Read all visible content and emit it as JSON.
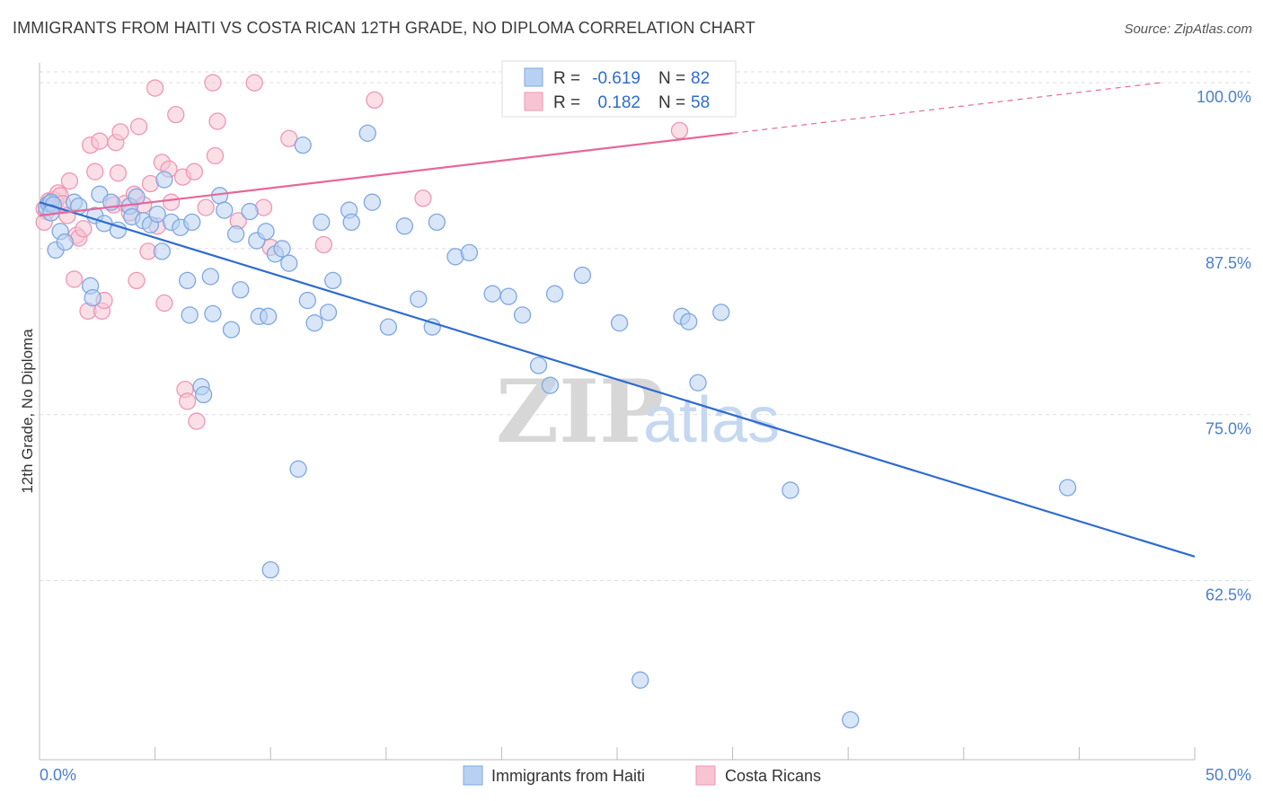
{
  "header": {
    "title": "IMMIGRANTS FROM HAITI VS COSTA RICAN 12TH GRADE, NO DIPLOMA CORRELATION CHART",
    "source": "Source: ZipAtlas.com"
  },
  "watermark": {
    "zip": "ZIP",
    "atlas": "atlas"
  },
  "colors": {
    "blue_fill": "#b8d1f3",
    "blue_stroke": "#7fa7e0",
    "blue_line": "#2f6ccc",
    "pink_fill": "#f8c4d4",
    "pink_stroke": "#ef96b4",
    "pink_line": "#e8679a",
    "grid": "#dddddd",
    "axis_text": "#4a7fd0"
  },
  "legend": {
    "r_label": "R =",
    "n_label": "N =",
    "series": [
      {
        "r": "-0.619",
        "n": "82"
      },
      {
        "r": "0.182",
        "n": "58"
      }
    ]
  },
  "bottom_legend": [
    "Immigrants from Haiti",
    "Costa Ricans"
  ],
  "chart_data": {
    "type": "scatter",
    "title": "IMMIGRANTS FROM HAITI VS COSTA RICAN 12TH GRADE, NO DIPLOMA CORRELATION CHART",
    "xlabel": "",
    "ylabel": "12th Grade, No Diploma",
    "xlim": [
      0,
      50
    ],
    "ylim": [
      49,
      101.5
    ],
    "x_tick_labels": [
      "0.0%",
      "50.0%"
    ],
    "y_ticks": [
      62.5,
      75.0,
      87.5,
      100.0
    ],
    "y_tick_labels": [
      "62.5%",
      "75.0%",
      "87.5%",
      "100.0%"
    ],
    "grid": true,
    "series": [
      {
        "name": "Immigrants from Haiti",
        "r": -0.619,
        "n": 82,
        "trend": {
          "x": [
            0,
            50
          ],
          "y": [
            91.0,
            64.3
          ],
          "dashed_from": null
        },
        "points": [
          [
            0.3,
            90.6
          ],
          [
            0.4,
            90.9
          ],
          [
            0.5,
            91.0
          ],
          [
            0.6,
            90.8
          ],
          [
            0.7,
            87.4
          ],
          [
            0.9,
            88.8
          ],
          [
            1.1,
            88.0
          ],
          [
            1.5,
            91.0
          ],
          [
            1.7,
            90.7
          ],
          [
            2.2,
            84.7
          ],
          [
            2.3,
            83.8
          ],
          [
            2.4,
            90.0
          ],
          [
            2.6,
            91.6
          ],
          [
            2.8,
            89.4
          ],
          [
            3.1,
            91.0
          ],
          [
            3.4,
            88.9
          ],
          [
            3.9,
            90.7
          ],
          [
            4.0,
            89.9
          ],
          [
            4.2,
            91.4
          ],
          [
            4.5,
            89.6
          ],
          [
            4.8,
            89.3
          ],
          [
            5.1,
            90.1
          ],
          [
            5.3,
            87.3
          ],
          [
            5.4,
            92.7
          ],
          [
            5.7,
            89.5
          ],
          [
            6.1,
            89.1
          ],
          [
            6.4,
            85.1
          ],
          [
            6.5,
            82.5
          ],
          [
            6.6,
            89.5
          ],
          [
            7.0,
            77.1
          ],
          [
            7.1,
            76.5
          ],
          [
            7.4,
            85.4
          ],
          [
            7.5,
            82.6
          ],
          [
            7.8,
            91.5
          ],
          [
            8.0,
            90.4
          ],
          [
            8.3,
            81.4
          ],
          [
            8.5,
            88.6
          ],
          [
            8.7,
            84.4
          ],
          [
            9.1,
            90.3
          ],
          [
            9.4,
            88.1
          ],
          [
            9.5,
            82.4
          ],
          [
            9.8,
            88.8
          ],
          [
            9.9,
            82.4
          ],
          [
            10.0,
            63.3
          ],
          [
            10.2,
            87.1
          ],
          [
            10.5,
            87.5
          ],
          [
            10.8,
            86.4
          ],
          [
            11.2,
            70.9
          ],
          [
            11.4,
            95.3
          ],
          [
            11.6,
            83.6
          ],
          [
            11.9,
            81.9
          ],
          [
            12.2,
            89.5
          ],
          [
            12.5,
            82.7
          ],
          [
            12.7,
            85.1
          ],
          [
            13.4,
            90.4
          ],
          [
            13.5,
            89.5
          ],
          [
            14.2,
            96.2
          ],
          [
            14.4,
            91.0
          ],
          [
            15.1,
            81.6
          ],
          [
            15.8,
            89.2
          ],
          [
            16.4,
            83.7
          ],
          [
            17.0,
            81.6
          ],
          [
            17.2,
            89.5
          ],
          [
            18.0,
            86.9
          ],
          [
            18.6,
            87.2
          ],
          [
            19.6,
            84.1
          ],
          [
            20.3,
            83.9
          ],
          [
            20.9,
            82.5
          ],
          [
            21.6,
            78.7
          ],
          [
            22.1,
            77.2
          ],
          [
            22.3,
            84.1
          ],
          [
            23.5,
            85.5
          ],
          [
            25.1,
            81.9
          ],
          [
            26.0,
            55.0
          ],
          [
            27.8,
            82.4
          ],
          [
            28.1,
            82.0
          ],
          [
            28.5,
            77.4
          ],
          [
            29.5,
            82.7
          ],
          [
            32.5,
            69.3
          ],
          [
            35.1,
            52.0
          ],
          [
            44.5,
            69.5
          ],
          [
            0.5,
            90.2
          ]
        ]
      },
      {
        "name": "Costa Ricans",
        "r": 0.182,
        "n": 58,
        "trend": {
          "x": [
            0,
            30,
            48.5
          ],
          "y": [
            90.0,
            96.2,
            100.0
          ],
          "dashed_from": 30
        },
        "points": [
          [
            0.2,
            90.5
          ],
          [
            0.3,
            90.3
          ],
          [
            0.4,
            91.1
          ],
          [
            0.6,
            91.2
          ],
          [
            0.7,
            91.0
          ],
          [
            0.8,
            91.7
          ],
          [
            0.9,
            91.5
          ],
          [
            1.0,
            90.9
          ],
          [
            1.2,
            90.0
          ],
          [
            1.3,
            92.6
          ],
          [
            1.5,
            85.2
          ],
          [
            1.6,
            88.5
          ],
          [
            1.7,
            88.3
          ],
          [
            1.9,
            89.0
          ],
          [
            2.1,
            82.8
          ],
          [
            2.2,
            95.3
          ],
          [
            2.4,
            93.3
          ],
          [
            2.6,
            95.6
          ],
          [
            2.7,
            82.8
          ],
          [
            2.8,
            83.6
          ],
          [
            3.2,
            90.8
          ],
          [
            3.3,
            95.5
          ],
          [
            3.4,
            93.2
          ],
          [
            3.5,
            96.3
          ],
          [
            3.7,
            90.9
          ],
          [
            3.9,
            90.2
          ],
          [
            4.1,
            91.6
          ],
          [
            4.2,
            85.1
          ],
          [
            4.3,
            96.7
          ],
          [
            4.5,
            90.8
          ],
          [
            4.7,
            87.3
          ],
          [
            4.8,
            92.4
          ],
          [
            5.0,
            99.6
          ],
          [
            5.1,
            89.2
          ],
          [
            5.3,
            94.0
          ],
          [
            5.4,
            83.4
          ],
          [
            5.6,
            93.5
          ],
          [
            5.7,
            91.0
          ],
          [
            5.9,
            97.6
          ],
          [
            6.2,
            92.9
          ],
          [
            6.3,
            76.9
          ],
          [
            6.4,
            76.0
          ],
          [
            6.7,
            93.3
          ],
          [
            6.8,
            74.5
          ],
          [
            7.2,
            90.6
          ],
          [
            7.5,
            100.0
          ],
          [
            7.6,
            94.5
          ],
          [
            7.7,
            97.1
          ],
          [
            8.6,
            89.6
          ],
          [
            9.3,
            100.0
          ],
          [
            9.7,
            90.6
          ],
          [
            10.0,
            87.6
          ],
          [
            10.8,
            95.8
          ],
          [
            12.3,
            87.8
          ],
          [
            14.5,
            98.7
          ],
          [
            16.6,
            91.3
          ],
          [
            27.7,
            96.4
          ],
          [
            0.2,
            89.5
          ]
        ]
      }
    ]
  }
}
